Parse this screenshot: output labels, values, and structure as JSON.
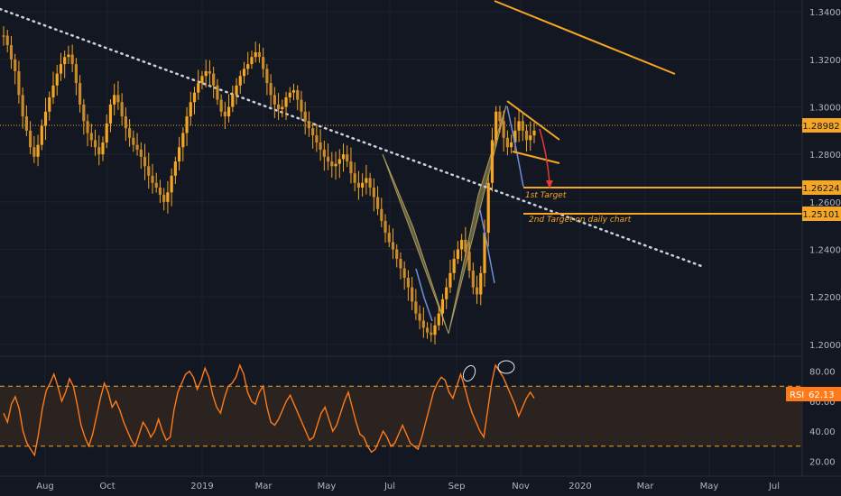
{
  "chart_data": [
    {
      "type": "candlestick",
      "instrument": "",
      "x_ticks": [
        "Aug",
        "Oct",
        "2019",
        "Mar",
        "May",
        "Jul",
        "Sep",
        "Nov",
        "2020",
        "Mar",
        "May",
        "Jul"
      ],
      "y_ticks": [
        "1.34000",
        "1.32000",
        "1.30000",
        "1.28000",
        "1.26000",
        "1.24000",
        "1.22000",
        "1.20000"
      ],
      "ylim": [
        1.195,
        1.345
      ],
      "current_price": "1.28982",
      "price_tags": [
        {
          "label": "1.28982",
          "value": 1.28982,
          "role": "current"
        },
        {
          "label": "1.26224",
          "value": 1.26224,
          "role": "target-1"
        },
        {
          "label": "1.25101",
          "value": 1.25101,
          "role": "target-2"
        }
      ],
      "series": [
        {
          "values": [
            1.33,
            1.326,
            1.32,
            1.315,
            1.305,
            1.296,
            1.29,
            1.283,
            1.279,
            1.284,
            1.292,
            1.298,
            1.304,
            1.309,
            1.314,
            1.318,
            1.321,
            1.322,
            1.318,
            1.31,
            1.301,
            1.294,
            1.289,
            1.286,
            1.283,
            1.28,
            1.285,
            1.293,
            1.301,
            1.305,
            1.302,
            1.296,
            1.291,
            1.287,
            1.284,
            1.282,
            1.279,
            1.275,
            1.271,
            1.268,
            1.266,
            1.263,
            1.26,
            1.264,
            1.271,
            1.277,
            1.283,
            1.289,
            1.296,
            1.302,
            1.306,
            1.31,
            1.313,
            1.315,
            1.314,
            1.309,
            1.303,
            1.298,
            1.296,
            1.3,
            1.305,
            1.309,
            1.313,
            1.316,
            1.318,
            1.321,
            1.323,
            1.321,
            1.316,
            1.31,
            1.305,
            1.301,
            1.299,
            1.3,
            1.304,
            1.306,
            1.307,
            1.303,
            1.298,
            1.294,
            1.291,
            1.288,
            1.285,
            1.282,
            1.279,
            1.277,
            1.275,
            1.276,
            1.278,
            1.28,
            1.277,
            1.272,
            1.268,
            1.266,
            1.268,
            1.27,
            1.266,
            1.262,
            1.257,
            1.252,
            1.247,
            1.243,
            1.24,
            1.236,
            1.232,
            1.228,
            1.224,
            1.218,
            1.213,
            1.21,
            1.207,
            1.205,
            1.204,
            1.208,
            1.213,
            1.219,
            1.224,
            1.23,
            1.236,
            1.24,
            1.244,
            1.239,
            1.231,
            1.224,
            1.221,
            1.23,
            1.247,
            1.268,
            1.286,
            1.298,
            1.294,
            1.287,
            1.283,
            1.285,
            1.29,
            1.294,
            1.29,
            1.286,
            1.288,
            1.29
          ]
        }
      ],
      "annotations": [
        "1st Target",
        "2nd Target on daily chart"
      ]
    },
    {
      "type": "line",
      "name": "RSI",
      "indicator_label": "RSI",
      "indicator_value": "62.13",
      "y_ticks": [
        "80.00",
        "60.00",
        "40.00",
        "20.00"
      ],
      "ylim": [
        10,
        90
      ],
      "bands": [
        70,
        30
      ],
      "values": [
        52,
        46,
        58,
        63,
        55,
        40,
        32,
        28,
        24,
        38,
        55,
        67,
        72,
        78,
        70,
        60,
        66,
        75,
        70,
        58,
        44,
        36,
        30,
        38,
        50,
        62,
        72,
        66,
        56,
        60,
        54,
        46,
        40,
        34,
        30,
        38,
        46,
        42,
        36,
        40,
        48,
        40,
        34,
        36,
        54,
        66,
        72,
        78,
        80,
        76,
        68,
        74,
        82,
        76,
        64,
        56,
        52,
        62,
        70,
        72,
        76,
        84,
        78,
        66,
        60,
        58,
        66,
        70,
        56,
        46,
        44,
        48,
        54,
        60,
        64,
        58,
        52,
        46,
        40,
        34,
        36,
        44,
        52,
        56,
        48,
        40,
        44,
        52,
        60,
        66,
        56,
        46,
        38,
        36,
        30,
        26,
        28,
        34,
        40,
        36,
        30,
        32,
        38,
        44,
        38,
        32,
        30,
        28,
        36,
        46,
        56,
        66,
        72,
        76,
        74,
        66,
        62,
        70,
        78,
        70,
        60,
        52,
        46,
        40,
        36,
        54,
        72,
        84,
        80,
        76,
        70,
        64,
        58,
        50,
        56,
        62,
        66,
        62
      ]
    }
  ],
  "colors": {
    "background": "#131722",
    "candle": "#f5a623",
    "accent": "#f5a623",
    "grid": "#1e222d",
    "trendline": "#c9d1e0",
    "pattern": "#a99a5c",
    "down_arrow": "#e53935",
    "rsi_line": "#ff7a1a",
    "rsi_band_fill": "#2a2320"
  }
}
